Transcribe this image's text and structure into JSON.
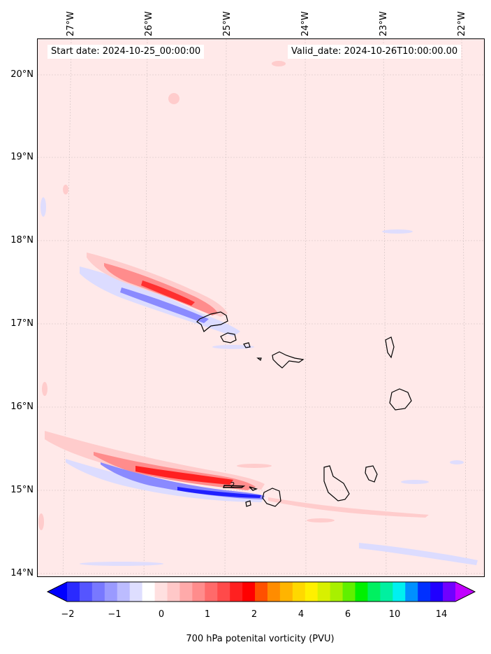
{
  "map": {
    "start_date": "Start date: 2024-10-25_00:00:00",
    "valid_date": "Valid_date: 2024-10-26T10:00:00.00",
    "lat_labels": [
      "20°N",
      "19°N",
      "18°N",
      "17°N",
      "16°N",
      "15°N",
      "14°N"
    ],
    "lon_labels": [
      "27°W",
      "26°W",
      "25°W",
      "24°W",
      "23°W",
      "22°W"
    ],
    "contour_label": "2",
    "colors": {
      "background": "#ffe9e9",
      "pos_light": "#ffcccc",
      "pos_mid": "#ff8c8c",
      "pos_strong": "#ff2020",
      "neg_light": "#dcdcff",
      "neg_mid": "#8a8aff",
      "neg_strong": "#2020ff"
    }
  },
  "colorbar": {
    "label": "700 hPa potenital vorticity (PVU)",
    "ticks": [
      "−2",
      "−1",
      "0",
      "1",
      "2",
      "4",
      "6",
      "10",
      "14"
    ],
    "colors": [
      "#0000ff",
      "#2a2aff",
      "#5555ff",
      "#7878ff",
      "#9a9aff",
      "#bcbcff",
      "#dedeff",
      "#ffffff",
      "#ffe0e0",
      "#ffc8c8",
      "#ffaaaa",
      "#ff8c8c",
      "#ff6a6a",
      "#ff4a4a",
      "#ff2020",
      "#ff0000",
      "#ff5000",
      "#ff8c00",
      "#ffb400",
      "#ffd800",
      "#fff000",
      "#d8f000",
      "#a8f000",
      "#60f000",
      "#00f000",
      "#00f060",
      "#00f0a0",
      "#00f0f0",
      "#0090ff",
      "#0030ff",
      "#2000ff",
      "#7000ff",
      "#c000ff"
    ]
  }
}
